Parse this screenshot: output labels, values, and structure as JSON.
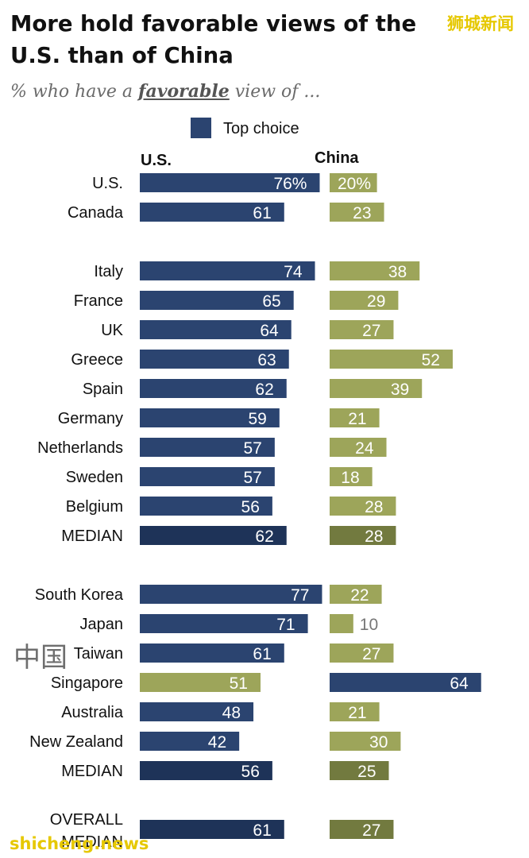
{
  "chart_data": {
    "type": "bar",
    "title": "More hold favorable views of the U.S. than of China",
    "subtitle_prefix": "% who have a ",
    "subtitle_emphasis": "favorable",
    "subtitle_suffix": " view of ...",
    "legend_label": "Top choice",
    "series_labels": [
      "U.S.",
      "China"
    ],
    "value_suffix_first": "%",
    "colors": {
      "top_choice": "#2b4470",
      "us_top": "#2b4470",
      "china_regular": "#9da55a",
      "median_top": "#1e3358",
      "median_china": "#727a3f",
      "singapore_us": "#9da55a",
      "value_text_light": "#ffffff",
      "value_text_dark": "#777777"
    },
    "rows": [
      {
        "label": "U.S.",
        "us": 76,
        "china": 20,
        "first": true
      },
      {
        "label": "Canada",
        "us": 61,
        "china": 23
      },
      {
        "label": "Italy",
        "us": 74,
        "china": 38
      },
      {
        "label": "France",
        "us": 65,
        "china": 29
      },
      {
        "label": "UK",
        "us": 64,
        "china": 27
      },
      {
        "label": "Greece",
        "us": 63,
        "china": 52
      },
      {
        "label": "Spain",
        "us": 62,
        "china": 39
      },
      {
        "label": "Germany",
        "us": 59,
        "china": 21
      },
      {
        "label": "Netherlands",
        "us": 57,
        "china": 24
      },
      {
        "label": "Sweden",
        "us": 57,
        "china": 18
      },
      {
        "label": "Belgium",
        "us": 56,
        "china": 28
      },
      {
        "label": "MEDIAN",
        "us": 62,
        "china": 28,
        "median": true
      },
      {
        "label": "South Korea",
        "us": 77,
        "china": 22
      },
      {
        "label": "Japan",
        "us": 71,
        "china": 10
      },
      {
        "label": "Taiwan",
        "us": 61,
        "china": 27
      },
      {
        "label": "Singapore",
        "us": 51,
        "china": 64,
        "china_top": true
      },
      {
        "label": "Australia",
        "us": 48,
        "china": 21
      },
      {
        "label": "New Zealand",
        "us": 42,
        "china": 30
      },
      {
        "label": "MEDIAN",
        "us": 56,
        "china": 25,
        "median": true
      },
      {
        "label": "OVERALL MEDIAN",
        "us": 61,
        "china": 27,
        "median": true,
        "multiline": true
      }
    ]
  },
  "watermarks": {
    "top_right": "狮城新闻",
    "middle_left": "中国",
    "bottom_left": "shicheng.news"
  }
}
